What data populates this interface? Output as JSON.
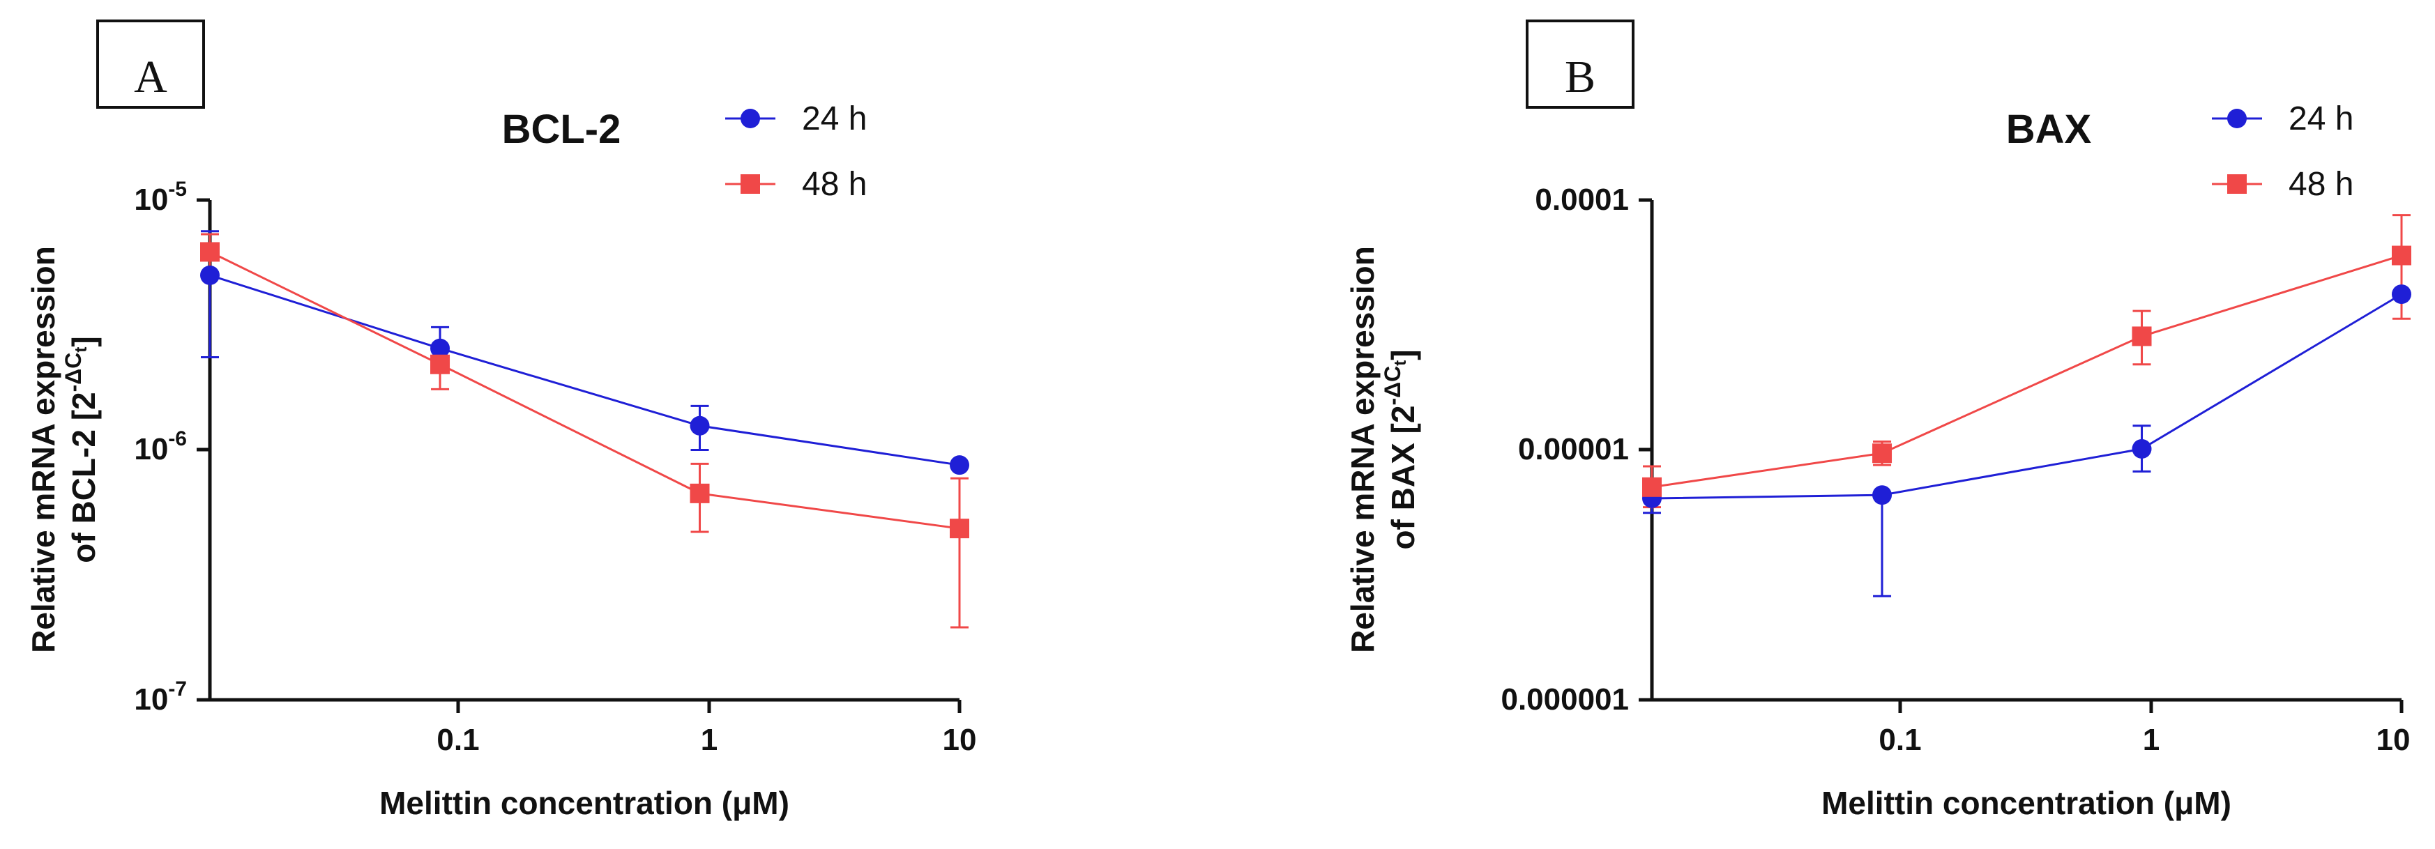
{
  "chart_data": [
    {
      "panel_label": "A",
      "type": "line",
      "title": "BCL-2",
      "xlabel": "Melittin concentration (μM)",
      "ylabel_line1": "Relative mRNA expression",
      "ylabel_line2_prefix": "of BCL-2 [2",
      "ylabel_sup_prefix": "-ΔC",
      "ylabel_sub": "t",
      "ylabel_suffix": "]",
      "xscale": "log",
      "yscale": "log",
      "xlim": [
        0.013,
        10
      ],
      "ylim": [
        1e-07,
        1e-05
      ],
      "x_ticks": [
        {
          "value": 0.1,
          "label": "0.1"
        },
        {
          "value": 1,
          "label": "1"
        },
        {
          "value": 10,
          "label": "10"
        }
      ],
      "y_ticks": [
        {
          "value": 1e-05,
          "base": "10",
          "exp": "-5"
        },
        {
          "value": 1e-06,
          "base": "10",
          "exp": "-6"
        },
        {
          "value": 1e-07,
          "base": "10",
          "exp": "-7"
        }
      ],
      "series": [
        {
          "name": "24 h",
          "color": "#1f1fd6",
          "marker": "circle",
          "x": [
            0.013,
            0.1,
            1,
            10
          ],
          "y": [
            5e-06,
            2.55e-06,
            1.25e-06,
            8.7e-07
          ],
          "err_low": [
            2.35e-06,
            2.05e-06,
            1e-06,
            8.7e-07
          ],
          "err_high": [
            7.5e-06,
            3.1e-06,
            1.5e-06,
            8.7e-07
          ]
        },
        {
          "name": "48 h",
          "color": "#f04848",
          "marker": "square",
          "x": [
            0.013,
            0.1,
            1,
            10
          ],
          "y": [
            6.2e-06,
            2.2e-06,
            6.7e-07,
            4.85e-07
          ],
          "err_low": [
            5.1e-06,
            1.75e-06,
            4.7e-07,
            1.95e-07
          ],
          "err_high": [
            7.3e-06,
            2.6e-06,
            8.8e-07,
            7.7e-07
          ]
        }
      ]
    },
    {
      "panel_label": "B",
      "type": "line",
      "title": "BAX",
      "xlabel": "Melittin concentration (μM)",
      "ylabel_line1": "Relative mRNA expression",
      "ylabel_line2_prefix": "of BAX [2",
      "ylabel_sup_prefix": "-ΔC",
      "ylabel_sub": "t",
      "ylabel_suffix": "]",
      "xscale": "log",
      "yscale": "log",
      "xlim": [
        0.013,
        10
      ],
      "ylim": [
        1e-06,
        0.0001
      ],
      "x_ticks": [
        {
          "value": 0.1,
          "label": "0.1"
        },
        {
          "value": 1,
          "label": "1"
        },
        {
          "value": 10,
          "label": "10"
        }
      ],
      "y_ticks": [
        {
          "value": 0.0001,
          "label": "0.0001"
        },
        {
          "value": 1e-05,
          "label": "0.00001"
        },
        {
          "value": 1e-06,
          "label": "0.000001"
        }
      ],
      "series": [
        {
          "name": "24 h",
          "color": "#1f1fd6",
          "marker": "circle",
          "x": [
            0.013,
            0.1,
            1,
            10
          ],
          "y": [
            6.4e-06,
            6.6e-06,
            1.01e-05,
            4.2e-05
          ],
          "err_low": [
            5.6e-06,
            2.6e-06,
            8.2e-06,
            4.2e-05
          ],
          "err_high": [
            7.2e-06,
            6.6e-06,
            1.25e-05,
            4.2e-05
          ]
        },
        {
          "name": "48 h",
          "color": "#f04848",
          "marker": "square",
          "x": [
            0.013,
            0.1,
            1,
            10
          ],
          "y": [
            7.1e-06,
            9.7e-06,
            2.85e-05,
            6e-05
          ],
          "err_low": [
            5.9e-06,
            8.7e-06,
            2.2e-05,
            3.35e-05
          ],
          "err_high": [
            8.6e-06,
            1.08e-05,
            3.6e-05,
            8.7e-05
          ]
        }
      ]
    }
  ]
}
